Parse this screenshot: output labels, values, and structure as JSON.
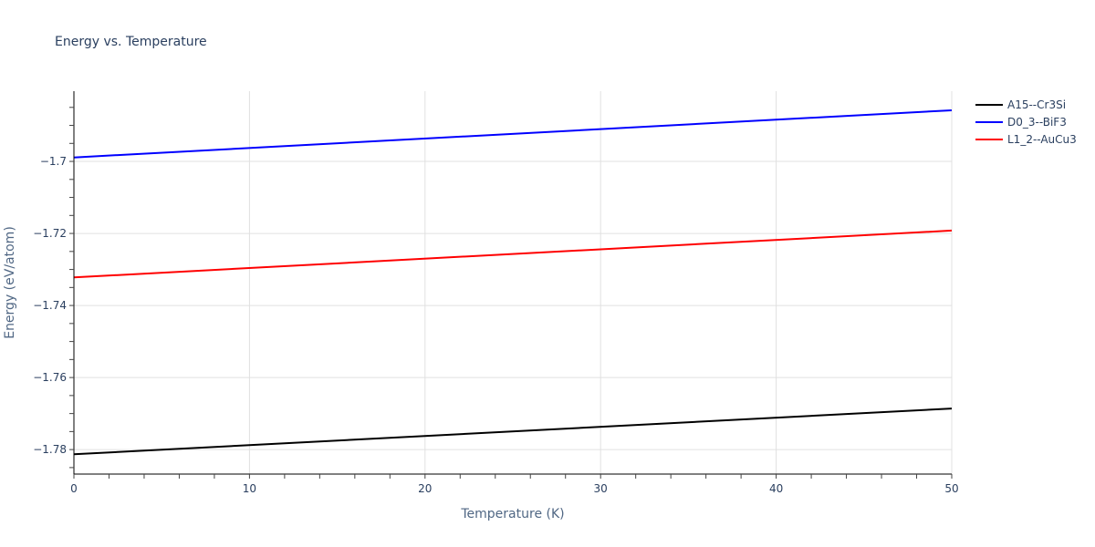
{
  "chart_data": {
    "type": "line",
    "title": "Energy vs. Temperature",
    "xlabel": "Temperature (K)",
    "ylabel": "Energy (eV/atom)",
    "xlim": [
      0,
      50
    ],
    "ylim": [
      -1.7868,
      -1.6805
    ],
    "x_ticks": [
      0,
      10,
      20,
      30,
      40,
      50
    ],
    "x_tick_labels": [
      "0",
      "10",
      "20",
      "30",
      "40",
      "50"
    ],
    "y_ticks": [
      -1.78,
      -1.76,
      -1.74,
      -1.72,
      -1.7
    ],
    "y_tick_labels": [
      "−1.78",
      "−1.76",
      "−1.74",
      "−1.72",
      "−1.7"
    ],
    "x_minor_step": 2,
    "y_minor_step": 0.005,
    "grid": true,
    "legend_position": "right-top",
    "series": [
      {
        "name": "A15--Cr3Si",
        "color": "#000000",
        "x": [
          0,
          50
        ],
        "values": [
          -1.7813,
          -1.7686
        ]
      },
      {
        "name": "D0_3--BiF3",
        "color": "#0000ff",
        "x": [
          0,
          50
        ],
        "values": [
          -1.6989,
          -1.6858
        ]
      },
      {
        "name": "L1_2--AuCu3",
        "color": "#ff0000",
        "x": [
          0,
          50
        ],
        "values": [
          -1.7322,
          -1.7192
        ]
      }
    ]
  }
}
